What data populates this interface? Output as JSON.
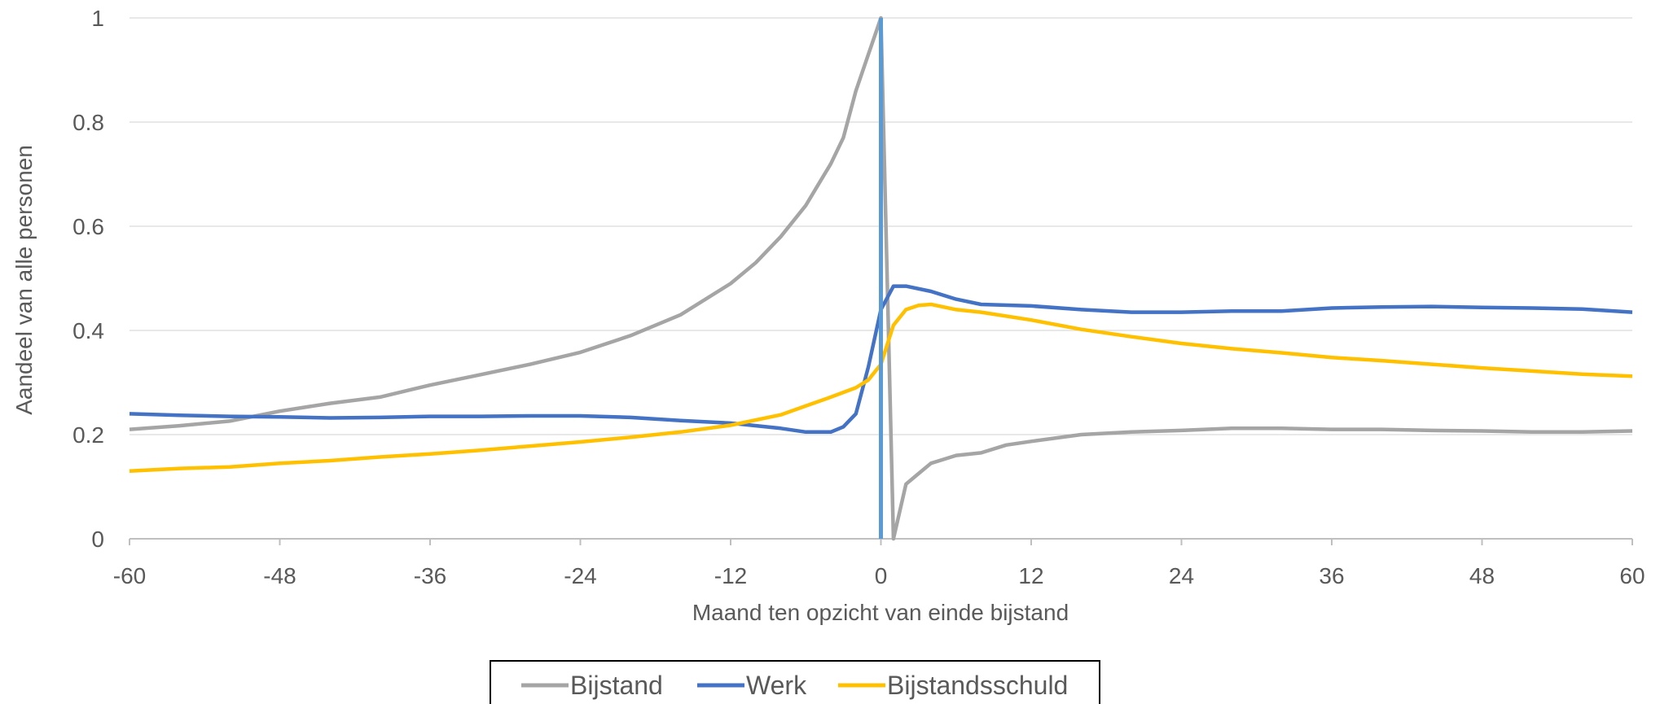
{
  "chart_data": {
    "type": "line",
    "title": "",
    "xlabel": "Maand ten opzicht van einde bijstand",
    "ylabel": "Aandeel van alle personen",
    "xlim": [
      -60,
      60
    ],
    "ylim": [
      0,
      1
    ],
    "x_ticks": [
      -60,
      -48,
      -36,
      -24,
      -12,
      0,
      12,
      24,
      36,
      48,
      60
    ],
    "y_ticks": [
      0,
      0.2,
      0.4,
      0.6,
      0.8,
      1
    ],
    "x_tick_labels": [
      "-60",
      "-48",
      "-36",
      "-24",
      "-12",
      "0",
      "12",
      "24",
      "36",
      "48",
      "60"
    ],
    "y_tick_labels": [
      "0",
      "0.2",
      "0.4",
      "0.6",
      "0.8",
      "1"
    ],
    "grid": "horizontal",
    "legend_position": "bottom",
    "vertical_marker": {
      "x": 0,
      "color": "#5B9BD5"
    },
    "series": [
      {
        "name": "Bijstand",
        "color": "#A5A5A5",
        "points": [
          [
            -60,
            0.21
          ],
          [
            -56,
            0.217
          ],
          [
            -52,
            0.226
          ],
          [
            -48,
            0.245
          ],
          [
            -44,
            0.26
          ],
          [
            -40,
            0.272
          ],
          [
            -36,
            0.295
          ],
          [
            -32,
            0.315
          ],
          [
            -28,
            0.335
          ],
          [
            -24,
            0.358
          ],
          [
            -20,
            0.39
          ],
          [
            -16,
            0.43
          ],
          [
            -12,
            0.49
          ],
          [
            -10,
            0.53
          ],
          [
            -8,
            0.58
          ],
          [
            -6,
            0.64
          ],
          [
            -5,
            0.68
          ],
          [
            -4,
            0.72
          ],
          [
            -3,
            0.77
          ],
          [
            -2,
            0.86
          ],
          [
            -1,
            0.93
          ],
          [
            0,
            1.0
          ],
          [
            1,
            0.0
          ],
          [
            2,
            0.105
          ],
          [
            3,
            0.125
          ],
          [
            4,
            0.145
          ],
          [
            6,
            0.16
          ],
          [
            8,
            0.165
          ],
          [
            10,
            0.18
          ],
          [
            12,
            0.187
          ],
          [
            16,
            0.2
          ],
          [
            20,
            0.205
          ],
          [
            24,
            0.208
          ],
          [
            28,
            0.212
          ],
          [
            32,
            0.212
          ],
          [
            36,
            0.21
          ],
          [
            40,
            0.21
          ],
          [
            44,
            0.208
          ],
          [
            48,
            0.207
          ],
          [
            52,
            0.205
          ],
          [
            56,
            0.205
          ],
          [
            60,
            0.207
          ]
        ]
      },
      {
        "name": "Werk",
        "color": "#4472C4",
        "points": [
          [
            -60,
            0.24
          ],
          [
            -56,
            0.237
          ],
          [
            -52,
            0.235
          ],
          [
            -48,
            0.234
          ],
          [
            -44,
            0.232
          ],
          [
            -40,
            0.233
          ],
          [
            -36,
            0.235
          ],
          [
            -32,
            0.235
          ],
          [
            -28,
            0.236
          ],
          [
            -24,
            0.236
          ],
          [
            -20,
            0.233
          ],
          [
            -16,
            0.227
          ],
          [
            -12,
            0.222
          ],
          [
            -8,
            0.212
          ],
          [
            -6,
            0.205
          ],
          [
            -4,
            0.205
          ],
          [
            -3,
            0.215
          ],
          [
            -2,
            0.24
          ],
          [
            -1,
            0.33
          ],
          [
            0,
            0.44
          ],
          [
            1,
            0.485
          ],
          [
            2,
            0.485
          ],
          [
            4,
            0.475
          ],
          [
            6,
            0.46
          ],
          [
            8,
            0.45
          ],
          [
            12,
            0.447
          ],
          [
            16,
            0.44
          ],
          [
            20,
            0.435
          ],
          [
            24,
            0.435
          ],
          [
            28,
            0.437
          ],
          [
            32,
            0.437
          ],
          [
            36,
            0.443
          ],
          [
            40,
            0.445
          ],
          [
            44,
            0.446
          ],
          [
            48,
            0.444
          ],
          [
            52,
            0.443
          ],
          [
            56,
            0.441
          ],
          [
            60,
            0.435
          ]
        ]
      },
      {
        "name": "Bijstandsschuld",
        "color": "#FFC000",
        "points": [
          [
            -60,
            0.13
          ],
          [
            -56,
            0.135
          ],
          [
            -52,
            0.138
          ],
          [
            -48,
            0.145
          ],
          [
            -44,
            0.15
          ],
          [
            -40,
            0.157
          ],
          [
            -36,
            0.163
          ],
          [
            -32,
            0.17
          ],
          [
            -28,
            0.178
          ],
          [
            -24,
            0.186
          ],
          [
            -20,
            0.195
          ],
          [
            -16,
            0.205
          ],
          [
            -12,
            0.218
          ],
          [
            -8,
            0.238
          ],
          [
            -6,
            0.255
          ],
          [
            -4,
            0.272
          ],
          [
            -2,
            0.29
          ],
          [
            -1,
            0.305
          ],
          [
            0,
            0.335
          ],
          [
            1,
            0.41
          ],
          [
            2,
            0.44
          ],
          [
            3,
            0.448
          ],
          [
            4,
            0.45
          ],
          [
            6,
            0.44
          ],
          [
            8,
            0.435
          ],
          [
            12,
            0.42
          ],
          [
            16,
            0.402
          ],
          [
            20,
            0.388
          ],
          [
            24,
            0.375
          ],
          [
            28,
            0.365
          ],
          [
            32,
            0.357
          ],
          [
            36,
            0.348
          ],
          [
            40,
            0.342
          ],
          [
            44,
            0.335
          ],
          [
            48,
            0.328
          ],
          [
            52,
            0.322
          ],
          [
            56,
            0.316
          ],
          [
            60,
            0.312
          ]
        ]
      }
    ]
  }
}
